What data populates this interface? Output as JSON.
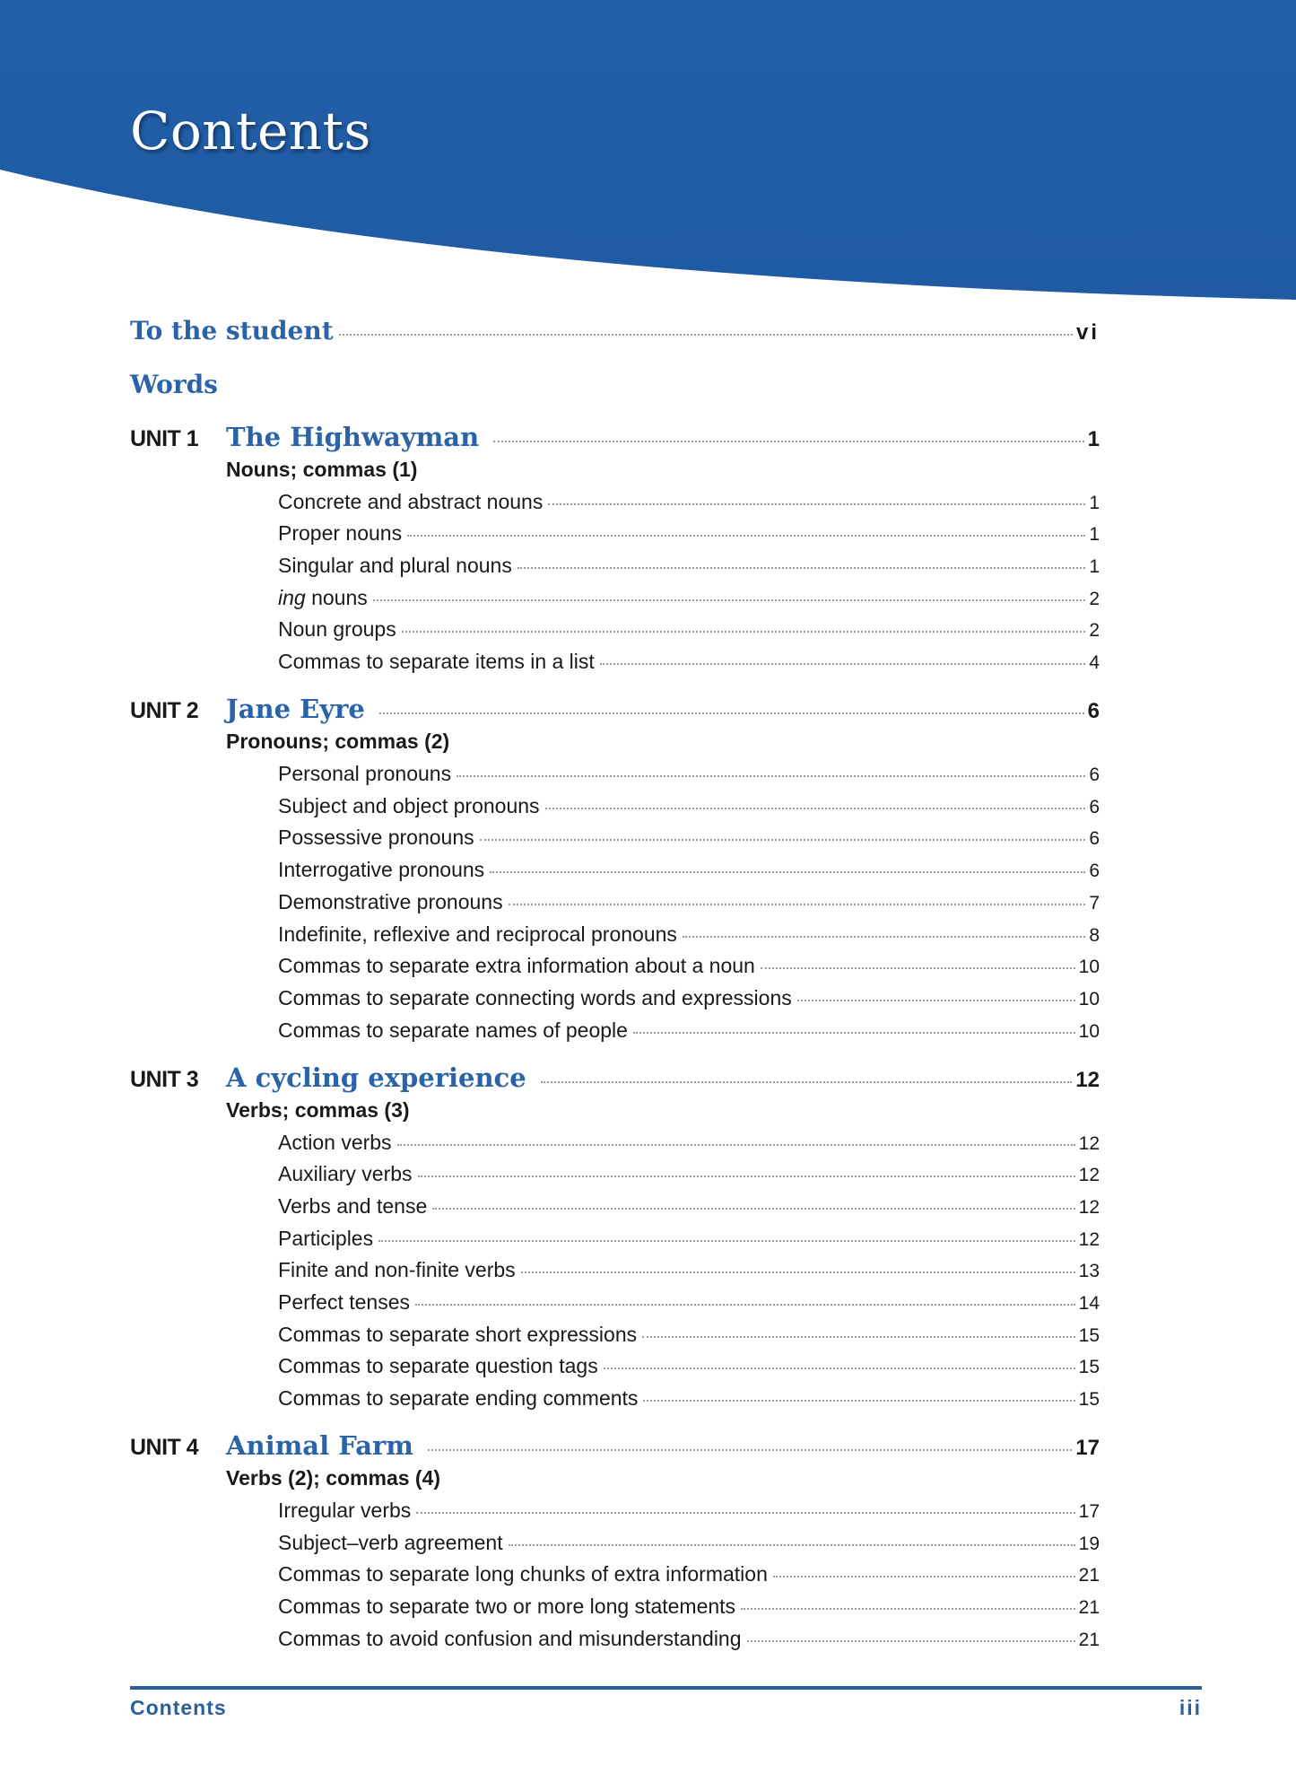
{
  "colors": {
    "band": "#2260a9",
    "heading": "#2a63a8",
    "footer": "#2a5f9e"
  },
  "title": "Contents",
  "to_student": {
    "label": "To the student",
    "page": "vi"
  },
  "section": "Words",
  "units": [
    {
      "label": "UNIT 1",
      "title": "The Highwayman",
      "page": "1",
      "subtitle": "Nouns; commas (1)",
      "items": [
        {
          "label": "Concrete and abstract nouns",
          "page": "1"
        },
        {
          "label": "Proper nouns",
          "page": "1"
        },
        {
          "label": "Singular and plural nouns",
          "page": "1"
        },
        {
          "label": "ing nouns",
          "page": "2",
          "italic_prefix": "ing",
          "rest": " nouns"
        },
        {
          "label": "Noun groups",
          "page": "2"
        },
        {
          "label": "Commas to separate items in a list",
          "page": "4"
        }
      ]
    },
    {
      "label": "UNIT 2",
      "title": "Jane Eyre",
      "page": "6",
      "subtitle": "Pronouns; commas (2)",
      "items": [
        {
          "label": "Personal pronouns",
          "page": "6"
        },
        {
          "label": "Subject and object pronouns",
          "page": "6"
        },
        {
          "label": "Possessive pronouns",
          "page": "6"
        },
        {
          "label": "Interrogative pronouns",
          "page": "6"
        },
        {
          "label": "Demonstrative pronouns",
          "page": "7"
        },
        {
          "label": "Indefinite, reflexive and reciprocal pronouns",
          "page": "8"
        },
        {
          "label": "Commas to separate extra information about a noun",
          "page": "10"
        },
        {
          "label": "Commas to separate connecting words and expressions",
          "page": "10"
        },
        {
          "label": "Commas to separate names of people",
          "page": "10"
        }
      ]
    },
    {
      "label": "UNIT 3",
      "title": "A cycling experience",
      "page": "12",
      "subtitle": "Verbs; commas (3)",
      "items": [
        {
          "label": "Action verbs",
          "page": "12"
        },
        {
          "label": "Auxiliary verbs",
          "page": "12"
        },
        {
          "label": "Verbs and tense",
          "page": "12"
        },
        {
          "label": "Participles",
          "page": "12"
        },
        {
          "label": "Finite and non-finite verbs",
          "page": "13"
        },
        {
          "label": "Perfect tenses",
          "page": "14"
        },
        {
          "label": "Commas to separate short expressions",
          "page": "15"
        },
        {
          "label": "Commas to separate question tags",
          "page": "15"
        },
        {
          "label": "Commas to separate ending comments",
          "page": "15"
        }
      ]
    },
    {
      "label": "UNIT 4",
      "title": "Animal Farm",
      "page": "17",
      "subtitle": "Verbs (2); commas (4)",
      "items": [
        {
          "label": "Irregular verbs",
          "page": "17"
        },
        {
          "label": "Subject–verb agreement",
          "page": "19"
        },
        {
          "label": "Commas to separate long chunks of extra information",
          "page": "21"
        },
        {
          "label": "Commas to separate two or more long statements",
          "page": "21"
        },
        {
          "label": "Commas to avoid confusion and misunderstanding",
          "page": "21"
        }
      ]
    }
  ],
  "footer": {
    "left": "Contents",
    "right": "iii"
  }
}
